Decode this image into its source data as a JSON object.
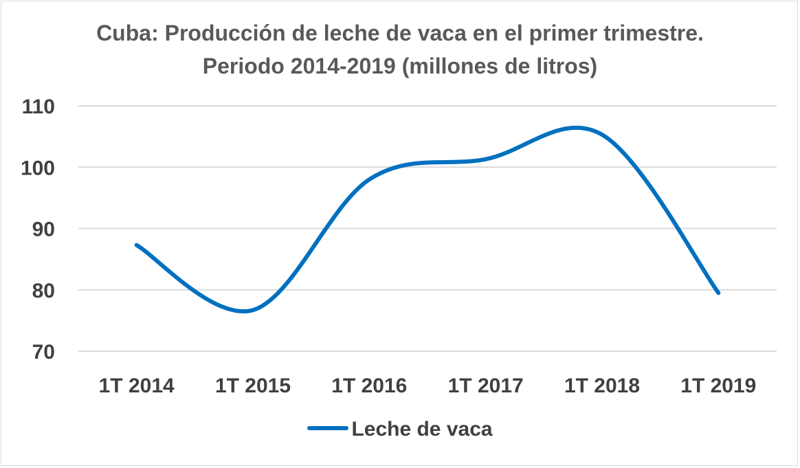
{
  "chart_data": {
    "type": "line",
    "title": "Cuba: Producción de leche de vaca en el primer trimestre.",
    "subtitle": "Periodo 2014-2019 (millones de litros)",
    "categories": [
      "1T 2014",
      "1T 2015",
      "1T 2016",
      "1T 2017",
      "1T 2018",
      "1T 2019"
    ],
    "series": [
      {
        "name": "Leche de vaca",
        "values": [
          87.3,
          76.7,
          98.0,
          101.3,
          105.3,
          79.5
        ],
        "color": "#0070c0"
      }
    ],
    "yticks": [
      "70",
      "80",
      "90",
      "100",
      "110"
    ],
    "ylim": [
      70,
      110
    ],
    "xlabel": "",
    "ylabel": "",
    "grid": "horizontal",
    "smooth": true,
    "legend": "bottom"
  }
}
